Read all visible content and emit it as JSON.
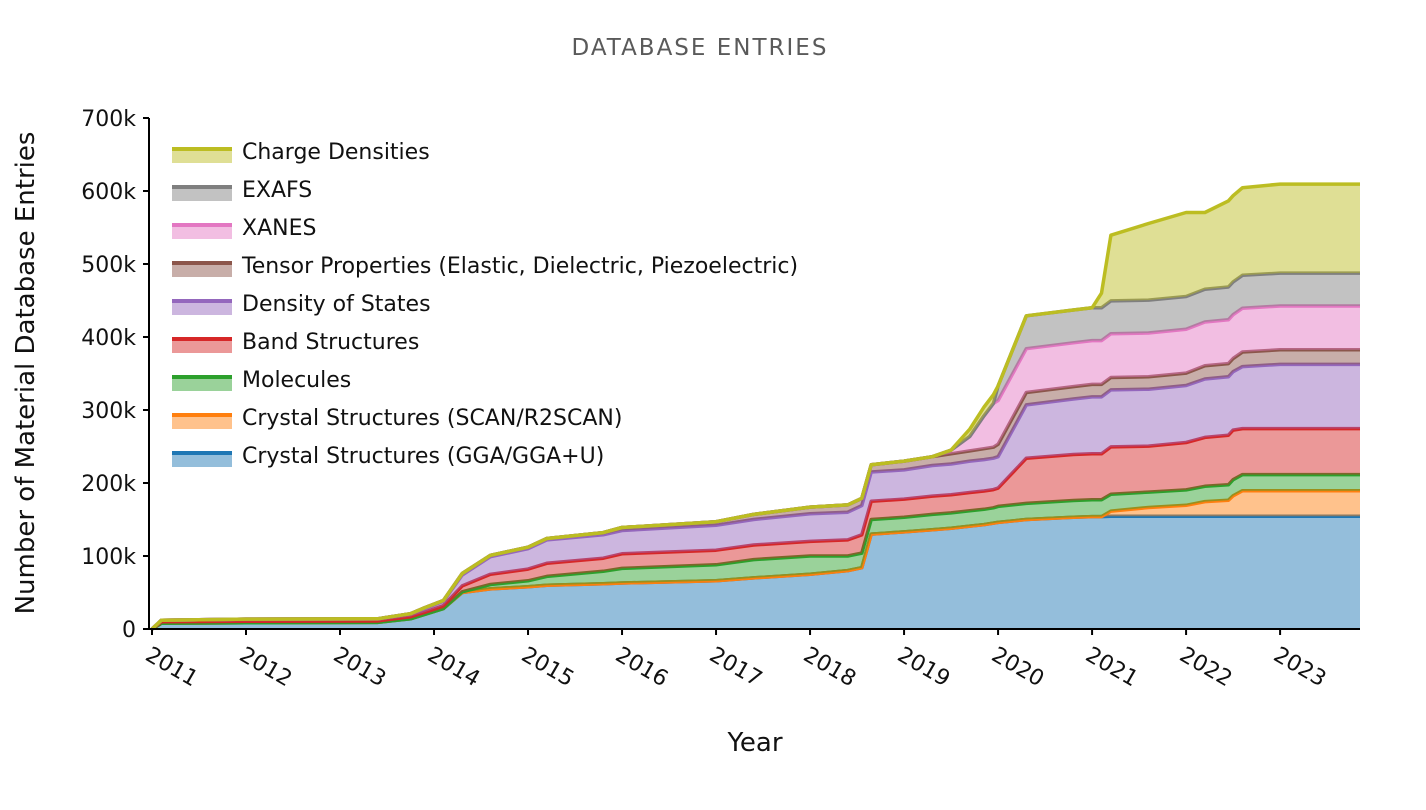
{
  "chart_data": {
    "type": "area",
    "stacked": true,
    "title": "DATABASE ENTRIES",
    "xlabel": "Year",
    "ylabel": "Number of Material Database Entries",
    "xlim": [
      2011.0,
      2023.85
    ],
    "ylim": [
      0,
      700000
    ],
    "x_ticks": [
      "2011",
      "2012",
      "2013",
      "2014",
      "2015",
      "2016",
      "2017",
      "2018",
      "2019",
      "2020",
      "2021",
      "2022",
      "2023"
    ],
    "y_ticks": [
      "0",
      "100k",
      "200k",
      "300k",
      "400k",
      "500k",
      "600k",
      "700k"
    ],
    "legend_position": "top-left",
    "x": [
      2011.0,
      2011.1,
      2012.0,
      2013.4,
      2013.75,
      2013.9,
      2014.1,
      2014.3,
      2014.6,
      2015.0,
      2015.2,
      2015.8,
      2016.0,
      2017.0,
      2017.4,
      2018.0,
      2018.4,
      2018.55,
      2018.65,
      2019.0,
      2019.3,
      2019.5,
      2019.7,
      2019.85,
      2019.95,
      2020.0,
      2020.3,
      2020.8,
      2021.0,
      2021.1,
      2021.2,
      2021.6,
      2022.0,
      2022.2,
      2022.45,
      2022.5,
      2022.6,
      2023.0,
      2023.85
    ],
    "series": [
      {
        "name": "Crystal Structures (GGA/GGA+U)",
        "color": "#1f77b4",
        "values": [
          0,
          8000,
          8500,
          9000,
          14000,
          20000,
          28000,
          50000,
          55000,
          58000,
          60000,
          62000,
          63000,
          66000,
          70000,
          75000,
          80000,
          84000,
          130000,
          133000,
          136000,
          138000,
          141000,
          143000,
          145000,
          146000,
          150000,
          153000,
          154000,
          154000,
          154500,
          154500,
          154500,
          154500,
          154500,
          154500,
          154500,
          154500,
          154500
        ]
      },
      {
        "name": "Crystal Structures (SCAN/R2SCAN)",
        "color": "#ff7f0e",
        "values": [
          0,
          0,
          0,
          0,
          0,
          0,
          0,
          0,
          0,
          0,
          0,
          0,
          0,
          0,
          0,
          0,
          0,
          0,
          0,
          0,
          0,
          0,
          0,
          0,
          0,
          0,
          0,
          0,
          0,
          0,
          7000,
          12000,
          15000,
          20000,
          22000,
          28000,
          35000,
          35000,
          35000
        ]
      },
      {
        "name": "Molecules",
        "color": "#2ca02c",
        "values": [
          0,
          0,
          0,
          0,
          0,
          0,
          0,
          1000,
          6000,
          8000,
          12000,
          17000,
          20000,
          22000,
          25000,
          25000,
          20000,
          20000,
          20000,
          20000,
          21000,
          21000,
          21000,
          21000,
          21000,
          22000,
          22000,
          23000,
          23000,
          23000,
          23000,
          21000,
          21000,
          21000,
          21000,
          22000,
          22000,
          22000,
          22000
        ]
      },
      {
        "name": "Band Structures",
        "color": "#d62728",
        "values": [
          0,
          2000,
          2000,
          2000,
          3000,
          3000,
          4000,
          8000,
          14000,
          16000,
          18000,
          18000,
          20000,
          20000,
          20000,
          20000,
          22000,
          25000,
          25000,
          25000,
          25000,
          25000,
          25000,
          25000,
          25000,
          25000,
          62000,
          63000,
          63000,
          63000,
          65000,
          63000,
          65000,
          67000,
          68000,
          68000,
          63000,
          63000,
          63000
        ]
      },
      {
        "name": "Density of States",
        "color": "#9467bd",
        "values": [
          0,
          2000,
          3000,
          3000,
          4000,
          5000,
          6000,
          15000,
          24000,
          28000,
          32000,
          32000,
          32000,
          34000,
          35000,
          38000,
          38000,
          40000,
          40000,
          40000,
          42000,
          42000,
          43000,
          43000,
          43000,
          43000,
          73000,
          76000,
          78000,
          78000,
          78000,
          78000,
          78000,
          80000,
          80000,
          80000,
          85000,
          88000,
          88000
        ]
      },
      {
        "name": "Tensor Properties (Elastic, Dielectric, Piezoelectric)",
        "color": "#8c564b",
        "values": [
          0,
          0,
          0,
          0,
          0,
          1000,
          1000,
          2000,
          2000,
          2000,
          2000,
          3000,
          4000,
          5000,
          7000,
          9000,
          10000,
          10000,
          10000,
          12000,
          12000,
          14000,
          14000,
          15000,
          15000,
          17000,
          17000,
          17000,
          17000,
          17000,
          17000,
          17000,
          17000,
          18000,
          18000,
          18000,
          20000,
          20000,
          20000
        ]
      },
      {
        "name": "XANES",
        "color": "#e377c2",
        "values": [
          0,
          0,
          0,
          0,
          0,
          0,
          0,
          0,
          0,
          0,
          0,
          0,
          0,
          0,
          0,
          0,
          0,
          0,
          0,
          0,
          0,
          5000,
          20000,
          45000,
          60000,
          60000,
          60000,
          60000,
          60000,
          60000,
          60000,
          60000,
          60000,
          60000,
          60000,
          60000,
          60000,
          60000,
          60000
        ]
      },
      {
        "name": "EXAFS",
        "color": "#7f7f7f",
        "values": [
          0,
          0,
          0,
          0,
          0,
          0,
          0,
          0,
          0,
          0,
          0,
          0,
          0,
          0,
          0,
          0,
          0,
          0,
          0,
          0,
          0,
          0,
          0,
          0,
          0,
          20000,
          45000,
          45000,
          45000,
          45000,
          45000,
          45000,
          45000,
          45000,
          45000,
          45000,
          45000,
          45000,
          45000
        ]
      },
      {
        "name": "Charge Densities",
        "color": "#bcbd22",
        "values": [
          0,
          0,
          0,
          0,
          0,
          0,
          0,
          0,
          0,
          0,
          0,
          0,
          0,
          0,
          0,
          0,
          0,
          0,
          0,
          0,
          0,
          0,
          10000,
          12000,
          12000,
          0,
          0,
          0,
          0,
          20000,
          90000,
          105000,
          115000,
          105000,
          118000,
          118000,
          120000,
          122000,
          122000
        ]
      }
    ]
  }
}
